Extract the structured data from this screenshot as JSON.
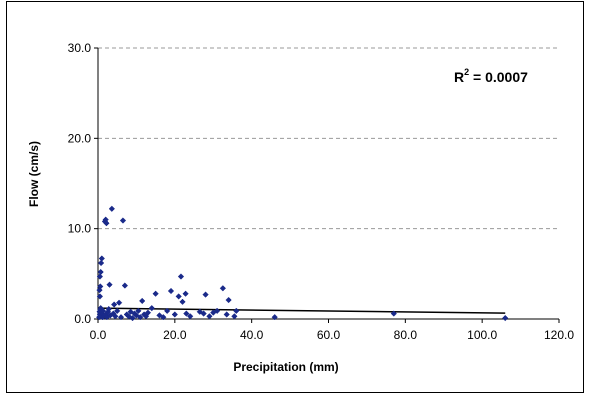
{
  "chart_data": {
    "type": "scatter",
    "xlabel": "Precipitation (mm)",
    "ylabel": "Flow (cm/s)",
    "xlim": [
      0,
      120
    ],
    "ylim": [
      0,
      30
    ],
    "x_ticks": [
      "0.0",
      "20.0",
      "40.0",
      "60.0",
      "80.0",
      "100.0",
      "120.0"
    ],
    "y_ticks": [
      "0.0",
      "10.0",
      "20.0",
      "30.0"
    ],
    "y_gridlines": true,
    "gridline_style": "dashed",
    "annotation": {
      "prefix": "R",
      "superscript": "2",
      "suffix": " = 0.0007"
    },
    "marker_color": "#1a2a8a",
    "trendline": {
      "x": [
        0,
        106
      ],
      "y": [
        1.2,
        0.65
      ],
      "color": "#000000"
    },
    "points": [
      [
        0.3,
        0.2
      ],
      [
        0.5,
        0.5
      ],
      [
        0.6,
        1.0
      ],
      [
        0.8,
        0.3
      ],
      [
        0.4,
        0.8
      ],
      [
        0.7,
        1.2
      ],
      [
        0.5,
        2.5
      ],
      [
        0.4,
        3.2
      ],
      [
        0.6,
        3.6
      ],
      [
        0.5,
        4.7
      ],
      [
        0.7,
        5.2
      ],
      [
        0.8,
        6.2
      ],
      [
        1.0,
        6.7
      ],
      [
        1.1,
        0.6
      ],
      [
        1.2,
        0.2
      ],
      [
        1.3,
        0.9
      ],
      [
        1.5,
        0.3
      ],
      [
        1.8,
        10.8
      ],
      [
        2.0,
        11.0
      ],
      [
        2.2,
        10.6
      ],
      [
        2.0,
        0.5
      ],
      [
        2.3,
        0.2
      ],
      [
        2.6,
        0.8
      ],
      [
        2.8,
        1.1
      ],
      [
        3.0,
        3.8
      ],
      [
        3.2,
        0.4
      ],
      [
        3.6,
        12.2
      ],
      [
        4.0,
        0.6
      ],
      [
        4.2,
        1.6
      ],
      [
        4.5,
        0.3
      ],
      [
        5.0,
        0.9
      ],
      [
        5.5,
        1.8
      ],
      [
        6.0,
        0.2
      ],
      [
        6.5,
        10.9
      ],
      [
        7.0,
        3.7
      ],
      [
        7.5,
        0.5
      ],
      [
        8.0,
        0.3
      ],
      [
        8.5,
        0.8
      ],
      [
        9.0,
        0.1
      ],
      [
        9.5,
        0.6
      ],
      [
        10.0,
        0.4
      ],
      [
        10.5,
        0.9
      ],
      [
        11.0,
        0.2
      ],
      [
        11.5,
        2.0
      ],
      [
        12.0,
        0.5
      ],
      [
        12.5,
        0.3
      ],
      [
        13.0,
        0.7
      ],
      [
        14.0,
        1.2
      ],
      [
        15.0,
        2.8
      ],
      [
        16.0,
        0.4
      ],
      [
        17.0,
        0.2
      ],
      [
        18.0,
        0.9
      ],
      [
        19.0,
        3.1
      ],
      [
        20.0,
        0.5
      ],
      [
        21.0,
        2.5
      ],
      [
        21.6,
        4.7
      ],
      [
        22.0,
        1.9
      ],
      [
        22.8,
        2.8
      ],
      [
        23.0,
        0.6
      ],
      [
        24.0,
        0.3
      ],
      [
        26.5,
        0.8
      ],
      [
        27.5,
        0.6
      ],
      [
        28.0,
        2.7
      ],
      [
        29.0,
        0.3
      ],
      [
        30.0,
        0.7
      ],
      [
        31.0,
        0.9
      ],
      [
        32.5,
        3.4
      ],
      [
        33.5,
        0.5
      ],
      [
        34.0,
        2.1
      ],
      [
        35.5,
        0.3
      ],
      [
        36.0,
        0.9
      ],
      [
        46.0,
        0.2
      ],
      [
        77.0,
        0.6
      ],
      [
        106.0,
        0.1
      ]
    ]
  }
}
